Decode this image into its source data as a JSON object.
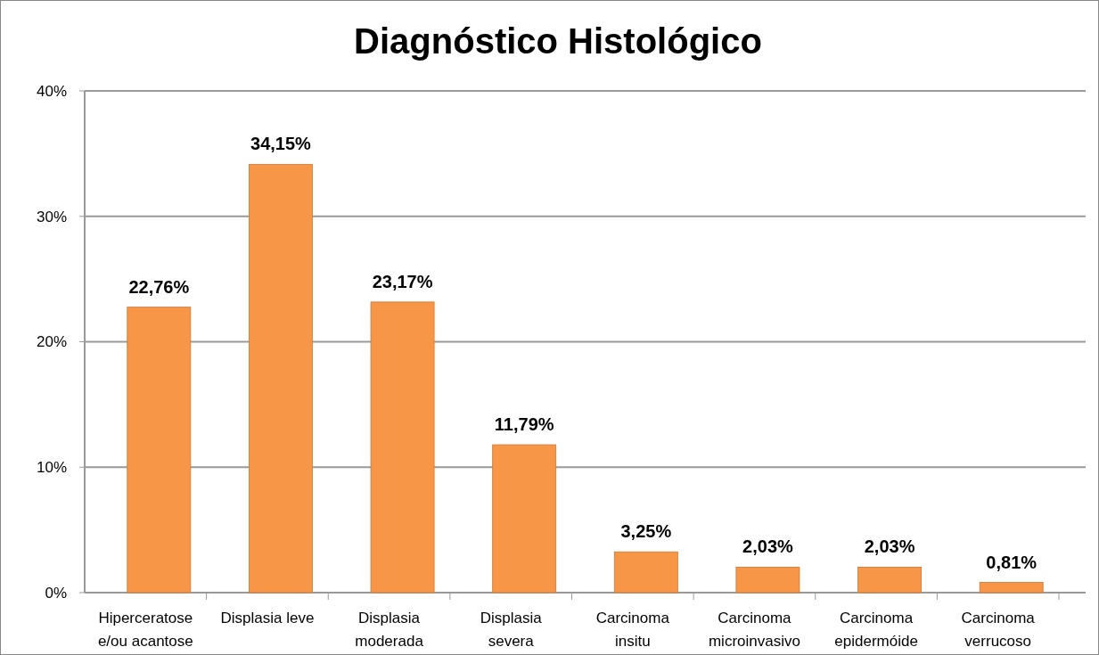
{
  "chart_data": {
    "type": "bar",
    "title": "Diagnóstico Histológico",
    "categories": [
      "Hiperceratose e/ou acantose",
      "Displasia leve",
      "Displasia moderada",
      "Displasia severa",
      "Carcinoma insitu",
      "Carcinoma microinvasivo",
      "Carcinoma epidermóide",
      "Carcinoma verrucoso"
    ],
    "values": [
      22.76,
      34.15,
      23.17,
      11.79,
      3.25,
      2.03,
      2.03,
      0.81
    ],
    "value_labels": [
      "22,76%",
      "34,15%",
      "23,17%",
      "11,79%",
      "3,25%",
      "2,03%",
      "2,03%",
      "0,81%"
    ],
    "color": "#f79646",
    "ylim": [
      0,
      40
    ],
    "yticks": [
      {
        "value": 0,
        "label": "0%"
      },
      {
        "value": 10,
        "label": "10%"
      },
      {
        "value": 20,
        "label": "20%"
      },
      {
        "value": 30,
        "label": "30%"
      },
      {
        "value": 40,
        "label": "40%"
      }
    ],
    "grid": "y"
  }
}
